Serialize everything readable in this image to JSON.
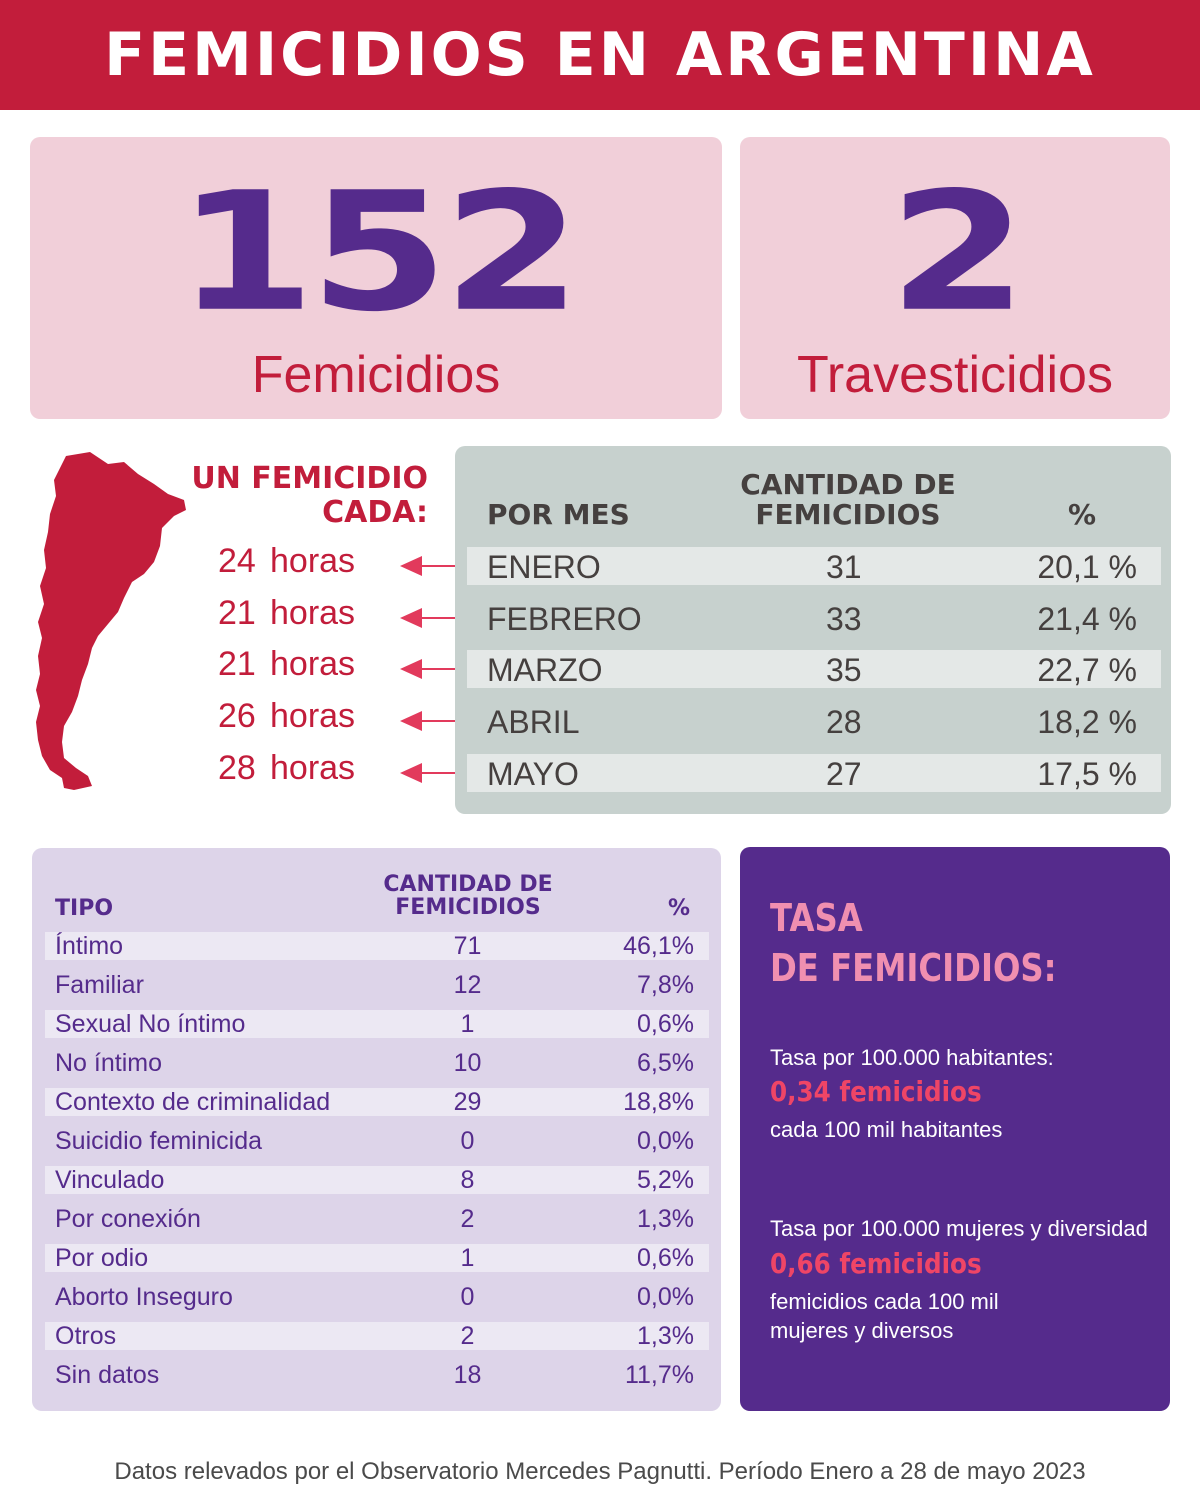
{
  "header": {
    "title": "FEMICIDIOS EN ARGENTINA"
  },
  "totals": {
    "femicidios": {
      "value": "152",
      "label": "Femicidios"
    },
    "travesticidios": {
      "value": "2",
      "label": "Travesticidios"
    }
  },
  "frequency": {
    "title_line1": "UN FEMICIDIO",
    "title_line2": "CADA:",
    "unit": "horas",
    "hours": [
      "24",
      "21",
      "21",
      "26",
      "28"
    ]
  },
  "monthly": {
    "headers": {
      "month": "POR MES",
      "count_line1": "CANTIDAD DE",
      "count_line2": "FEMICIDIOS",
      "pct": "%"
    },
    "rows": [
      {
        "month": "ENERO",
        "count": "31",
        "pct": "20,1 %"
      },
      {
        "month": "FEBRERO",
        "count": "33",
        "pct": "21,4 %"
      },
      {
        "month": "MARZO",
        "count": "35",
        "pct": "22,7 %"
      },
      {
        "month": "ABRIL",
        "count": "28",
        "pct": "18,2 %"
      },
      {
        "month": "MAYO",
        "count": "27",
        "pct": "17,5 %"
      }
    ]
  },
  "types": {
    "headers": {
      "type": "TIPO",
      "count_line1": "CANTIDAD DE",
      "count_line2": "FEMICIDIOS",
      "pct": "%"
    },
    "rows": [
      {
        "type": "Íntimo",
        "count": "71",
        "pct": "46,1%"
      },
      {
        "type": "Familiar",
        "count": "12",
        "pct": "7,8%"
      },
      {
        "type": "Sexual No íntimo",
        "count": "1",
        "pct": "0,6%"
      },
      {
        "type": "No íntimo",
        "count": "10",
        "pct": "6,5%"
      },
      {
        "type": "Contexto de criminalidad",
        "count": "29",
        "pct": "18,8%"
      },
      {
        "type": "Suicidio feminicida",
        "count": "0",
        "pct": "0,0%"
      },
      {
        "type": "Vinculado",
        "count": "8",
        "pct": "5,2%"
      },
      {
        "type": "Por conexión",
        "count": "2",
        "pct": "1,3%"
      },
      {
        "type": "Por odio",
        "count": "1",
        "pct": "0,6%"
      },
      {
        "type": "Aborto Inseguro",
        "count": "0",
        "pct": "0,0%"
      },
      {
        "type": "Otros",
        "count": "2",
        "pct": "1,3%"
      },
      {
        "type": "Sin datos",
        "count": "18",
        "pct": "11,7%"
      }
    ]
  },
  "rate": {
    "title_line1": "TASA",
    "title_line2": "DE FEMICIDIOS:",
    "block1": {
      "intro": "Tasa por 100.000 habitantes:",
      "value": "0,34 femicidios",
      "desc": "cada 100 mil habitantes"
    },
    "block2": {
      "intro": "Tasa por 100.000 mujeres y diversidad",
      "value": "0,66 femicidios",
      "desc_line1": "femicidios cada 100 mil",
      "desc_line2": "mujeres y diversos"
    }
  },
  "footer": {
    "source": "Datos relevados por el Observatorio Mercedes Pagnutti. Período Enero a 28 de mayo 2023"
  },
  "colors": {
    "header_red": "#c21d3b",
    "purple": "#552b8c",
    "pink_panel": "#f1cfd9",
    "gray_panel": "#c7d1ce",
    "lavender_panel": "#ddd4e9",
    "arrow_red": "#e23a5c",
    "rate_pink": "#f08fb0",
    "rate_red": "#ef4566"
  },
  "icons": {
    "map": "argentina-map-icon",
    "arrow": "arrow-left-icon"
  }
}
